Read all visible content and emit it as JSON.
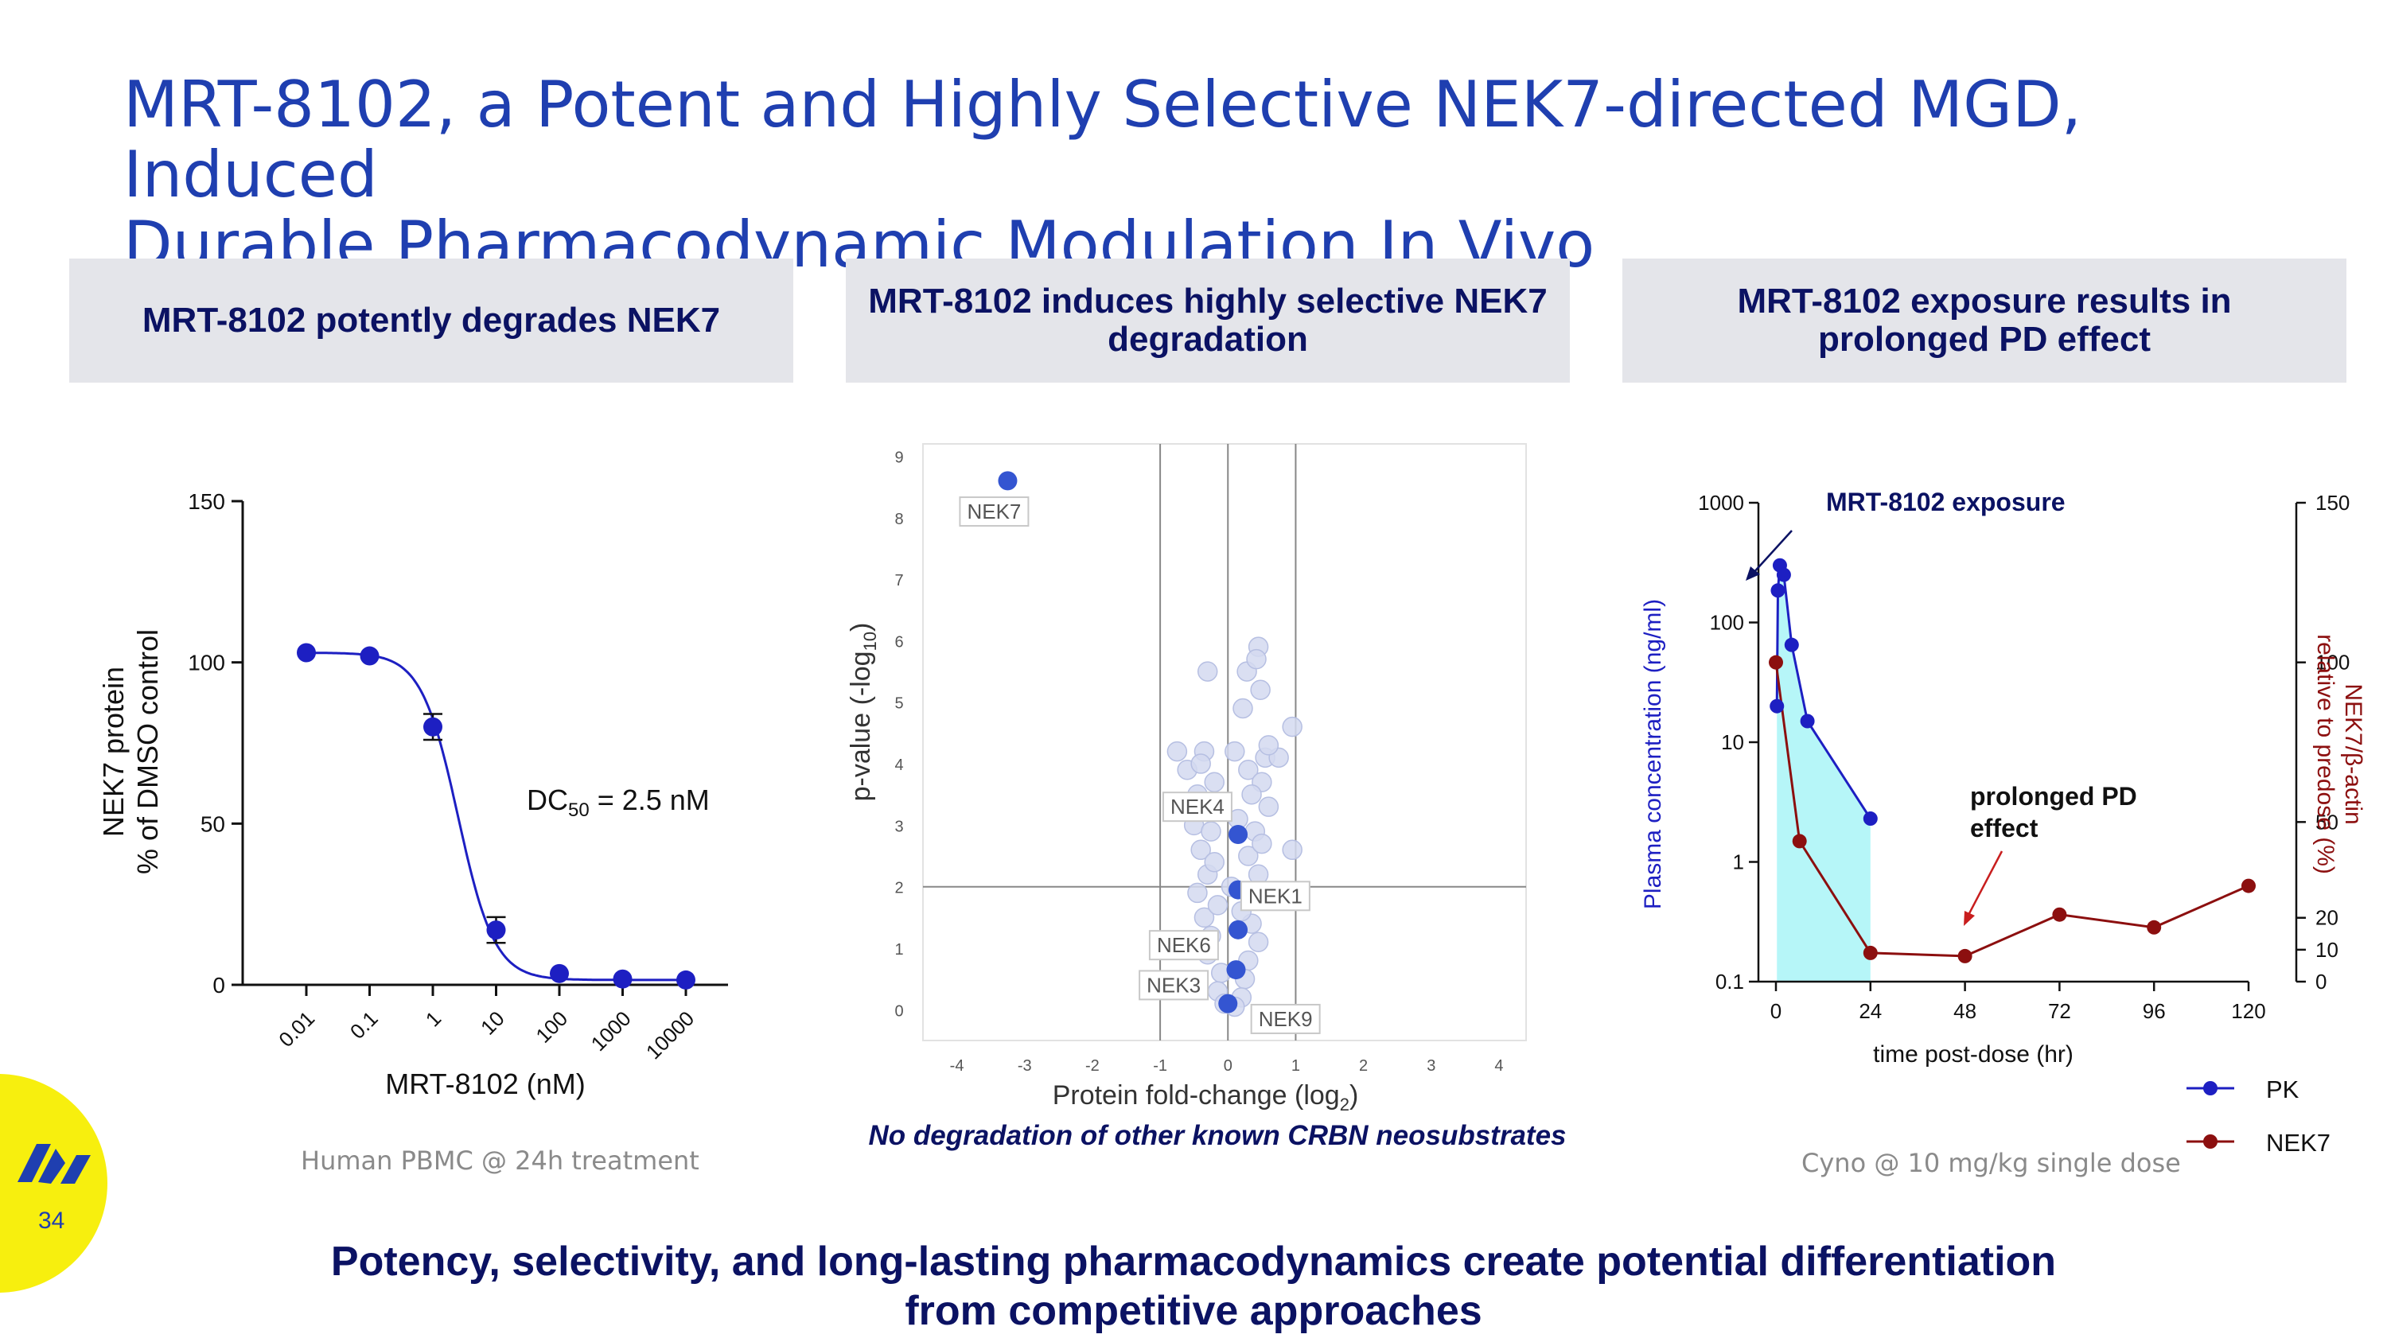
{
  "slide": {
    "title_line1": "MRT-8102, a Potent and Highly Selective NEK7-directed MGD, Induced",
    "title_line2": "Durable Pharmacodynamic Modulation In Vivo",
    "headers": {
      "left": "MRT-8102 potently degrades NEK7",
      "middle_line1": "MRT-8102 induces highly selective NEK7",
      "middle_line2": "degradation",
      "right_line1": "MRT-8102 exposure results in",
      "right_line2": "prolonged PD effect"
    },
    "footnotes": {
      "left": "Human PBMC @ 24h treatment",
      "middle": "No degradation of other known CRBN neosubstrates",
      "right": "Cyno @ 10 mg/kg single dose"
    },
    "bottom_line1": "Potency, selectivity, and long-lasting pharmacodynamics create potential differentiation",
    "bottom_line2": "from competitive approaches",
    "page_number": "34",
    "logo_icon": "monte-rosa-logo-icon",
    "colors": {
      "title": "#1f3fb0",
      "navy": "#0b1263",
      "header_bg": "#e4e5ea",
      "blue": "#1d1fc2",
      "red": "#8c0f0f",
      "cyan_fill": "#b6f6f8",
      "badge": "#f7ef0e"
    }
  },
  "chart_data": [
    {
      "type": "scatter",
      "title": "MRT-8102 potently degrades NEK7",
      "xlabel": "MRT-8102 (nM)",
      "ylabel_line1": "NEK7 protein",
      "ylabel_line2": "% of DMSO control",
      "x_scale": "log",
      "x_ticks": [
        "0.01",
        "0.1",
        "1",
        "10",
        "100",
        "1000",
        "10000"
      ],
      "y_ticks": [
        "0",
        "50",
        "100",
        "150"
      ],
      "ylim": [
        0,
        150
      ],
      "series": [
        {
          "name": "NEK7",
          "points": [
            {
              "x": 0.01,
              "y": 103,
              "err": 0
            },
            {
              "x": 0.1,
              "y": 102,
              "err": 0
            },
            {
              "x": 1,
              "y": 80,
              "err": 4
            },
            {
              "x": 10,
              "y": 17,
              "err": 4
            },
            {
              "x": 100,
              "y": 3.5,
              "err": 0
            },
            {
              "x": 1000,
              "y": 1.8,
              "err": 0
            },
            {
              "x": 10000,
              "y": 1.5,
              "err": 0
            }
          ]
        }
      ],
      "fit": {
        "top": 103,
        "bottom": 1.5,
        "ec50": 2.5,
        "hill": 1.5
      },
      "annotation": {
        "prefix": "DC",
        "subscript": "50",
        "suffix": " = 2.5 nM"
      }
    },
    {
      "type": "scatter",
      "title": "MRT-8102 induces highly selective NEK7 degradation",
      "xlabel": "Protein fold-change (log",
      "xlabel_sub": "2",
      "xlabel_end": ")",
      "ylabel": "p-value (-log",
      "ylabel_sub": "10",
      "ylabel_end": ")",
      "xlim": [
        -4.5,
        4.4
      ],
      "ylim": [
        -0.5,
        9.2
      ],
      "x_ticks": [
        "-4",
        "-3",
        "-2",
        "-1",
        "0",
        "1",
        "2",
        "3",
        "4"
      ],
      "y_ticks": [
        "0",
        "1",
        "2",
        "3",
        "4",
        "5",
        "6",
        "7",
        "8",
        "9"
      ],
      "vertical_lines": [
        -1,
        0,
        1
      ],
      "horizontal_line": 2,
      "background_cloud": [
        [
          0.28,
          5.5
        ],
        [
          0.45,
          5.9
        ],
        [
          0.42,
          5.7
        ],
        [
          -0.3,
          5.5
        ],
        [
          0.48,
          5.2
        ],
        [
          0.22,
          4.9
        ],
        [
          0.95,
          4.6
        ],
        [
          -0.75,
          4.2
        ],
        [
          -0.35,
          4.2
        ],
        [
          0.1,
          4.2
        ],
        [
          0.55,
          4.1
        ],
        [
          0.75,
          4.1
        ],
        [
          -0.6,
          3.9
        ],
        [
          0.3,
          3.9
        ],
        [
          -0.2,
          3.7
        ],
        [
          0.5,
          3.7
        ],
        [
          -0.45,
          3.5
        ],
        [
          0.35,
          3.5
        ],
        [
          -0.1,
          3.3
        ],
        [
          0.6,
          3.3
        ],
        [
          0.95,
          2.6
        ],
        [
          -0.5,
          3.0
        ],
        [
          -0.25,
          2.9
        ],
        [
          0.4,
          2.9
        ],
        [
          -0.4,
          2.6
        ],
        [
          0.3,
          2.5
        ],
        [
          -0.3,
          2.2
        ],
        [
          0.45,
          2.2
        ],
        [
          -0.45,
          1.9
        ],
        [
          0.4,
          1.8
        ],
        [
          -0.35,
          1.5
        ],
        [
          0.35,
          1.4
        ],
        [
          -0.25,
          1.2
        ],
        [
          0.45,
          1.1
        ],
        [
          -0.3,
          0.9
        ],
        [
          0.3,
          0.8
        ],
        [
          -0.1,
          0.6
        ],
        [
          0.25,
          0.5
        ],
        [
          -0.15,
          0.3
        ],
        [
          0.2,
          0.2
        ],
        [
          -0.05,
          0.1
        ],
        [
          0.1,
          0.05
        ],
        [
          -0.2,
          2.4
        ],
        [
          0.15,
          3.1
        ],
        [
          -0.15,
          1.7
        ],
        [
          0.2,
          1.6
        ],
        [
          -0.4,
          4.0
        ],
        [
          0.6,
          4.3
        ],
        [
          0.05,
          2.0
        ],
        [
          0.5,
          2.7
        ]
      ],
      "highlighted": [
        {
          "name": "NEK7",
          "x": -3.25,
          "y": 8.6
        },
        {
          "name": "NEK4",
          "x": 0.15,
          "y": 2.85
        },
        {
          "name": "NEK1",
          "x": 0.15,
          "y": 1.95
        },
        {
          "name": "NEK6",
          "x": 0.15,
          "y": 1.3
        },
        {
          "name": "NEK3",
          "x": 0.12,
          "y": 0.65
        },
        {
          "name": "NEK9",
          "x": 0.0,
          "y": 0.1
        }
      ],
      "labels": [
        {
          "text": "NEK7",
          "x": -3.45,
          "y": 8.1
        },
        {
          "text": "NEK4",
          "x": -0.45,
          "y": 3.3
        },
        {
          "text": "NEK1",
          "x": 0.7,
          "y": 1.85
        },
        {
          "text": "NEK6",
          "x": -0.65,
          "y": 1.05
        },
        {
          "text": "NEK3",
          "x": -0.8,
          "y": 0.4
        },
        {
          "text": "NEK9",
          "x": 0.85,
          "y": -0.15
        }
      ]
    },
    {
      "type": "line",
      "title": "MRT-8102 exposure results in prolonged PD effect",
      "xlabel": "time post-dose (hr)",
      "ylabel_left": "Plasma concentration (ng/ml)",
      "ylabel_right_line1": "NEK7/β-actin",
      "ylabel_right_line2": "relative to predose (%)",
      "x_ticks": [
        "0",
        "24",
        "48",
        "72",
        "96",
        "120"
      ],
      "xlim": [
        0,
        120
      ],
      "y_left_scale": "log",
      "y_left_ticks": [
        "0.1",
        "1",
        "10",
        "100",
        "1000"
      ],
      "y_left_lim": [
        0.1,
        1000
      ],
      "y_right_ticks": [
        "0",
        "10",
        "20",
        "50",
        "100",
        "150"
      ],
      "y_right_lim": [
        0,
        150
      ],
      "series": [
        {
          "name": "PK",
          "axis": "left",
          "x": [
            0.25,
            0.5,
            1,
            2,
            4,
            8,
            24
          ],
          "y": [
            20,
            185,
            300,
            250,
            65,
            15,
            2.3
          ]
        },
        {
          "name": "NEK7",
          "axis": "right",
          "x": [
            0,
            6,
            24,
            48,
            72,
            96,
            120
          ],
          "y": [
            100,
            44,
            9,
            8,
            21,
            17,
            30
          ]
        }
      ],
      "annotations": {
        "exposure": "MRT-8102 exposure",
        "pd_line1": "prolonged PD",
        "pd_line2": "effect"
      },
      "legend": [
        "PK",
        "NEK7"
      ],
      "legend_position": "bottom-right"
    }
  ]
}
